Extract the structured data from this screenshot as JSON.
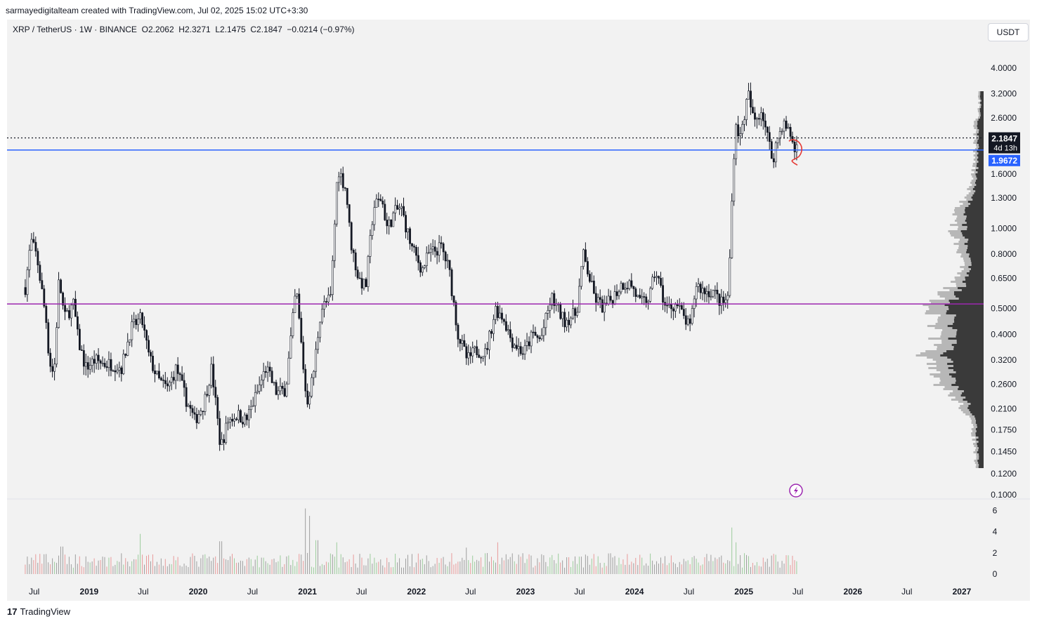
{
  "header": {
    "attribution": "sarmayedigitalteam created with TradingView.com, Jul 02, 2025 15:02 UTC+3:30",
    "ohlc": "XRP / TetherUS · 1W · BINANCE  O2.2062  H2.3271  L2.1475  C2.1847  −0.0214 (−0.97%)"
  },
  "currency_button": "USDT",
  "footer": {
    "logo_glyph": "17",
    "brand": "TradingView"
  },
  "chart_data": {
    "type": "candlestick",
    "symbol": "XRP / TetherUS",
    "interval": "1W",
    "exchange": "BINANCE",
    "last_ohlc": {
      "open": 2.2062,
      "high": 2.3271,
      "low": 2.1475,
      "close": 2.1847,
      "change": -0.0214,
      "change_pct": -0.97
    },
    "y_scale": "log",
    "y_range": [
      0.1,
      5.0
    ],
    "y_ticks": [
      "4.0000",
      "3.2000",
      "2.6000",
      "1.6000",
      "1.3000",
      "1.0000",
      "0.8000",
      "0.6500",
      "0.5000",
      "0.4000",
      "0.3200",
      "0.2600",
      "0.2100",
      "0.1750",
      "0.1450",
      "0.1200",
      "0.1000"
    ],
    "x_range": [
      "2018-04-01",
      "2027-03-15"
    ],
    "x_ticks": [
      {
        "label": "Jul",
        "date": "2018-07-01",
        "bold": false
      },
      {
        "label": "2019",
        "date": "2019-01-01",
        "bold": true
      },
      {
        "label": "Jul",
        "date": "2019-07-01",
        "bold": false
      },
      {
        "label": "2020",
        "date": "2020-01-01",
        "bold": true
      },
      {
        "label": "Jul",
        "date": "2020-07-01",
        "bold": false
      },
      {
        "label": "2021",
        "date": "2021-01-01",
        "bold": true
      },
      {
        "label": "Jul",
        "date": "2021-07-01",
        "bold": false
      },
      {
        "label": "2022",
        "date": "2022-01-01",
        "bold": true
      },
      {
        "label": "Jul",
        "date": "2022-07-01",
        "bold": false
      },
      {
        "label": "2023",
        "date": "2023-01-01",
        "bold": true
      },
      {
        "label": "Jul",
        "date": "2023-07-01",
        "bold": false
      },
      {
        "label": "2024",
        "date": "2024-01-01",
        "bold": true
      },
      {
        "label": "Jul",
        "date": "2024-07-01",
        "bold": false
      },
      {
        "label": "2025",
        "date": "2025-01-01",
        "bold": true
      },
      {
        "label": "Jul",
        "date": "2025-07-01",
        "bold": false
      },
      {
        "label": "2026",
        "date": "2026-01-01",
        "bold": true
      },
      {
        "label": "Jul",
        "date": "2026-07-01",
        "bold": false
      },
      {
        "label": "2027",
        "date": "2027-01-01",
        "bold": true
      }
    ],
    "price_path": [
      [
        "2018-06-01",
        0.6
      ],
      [
        "2018-06-20",
        0.9
      ],
      [
        "2018-07-10",
        0.78
      ],
      [
        "2018-08-10",
        0.45
      ],
      [
        "2018-08-20",
        0.32
      ],
      [
        "2018-09-05",
        0.28
      ],
      [
        "2018-09-22",
        0.65
      ],
      [
        "2018-10-10",
        0.46
      ],
      [
        "2018-11-10",
        0.52
      ],
      [
        "2018-11-25",
        0.38
      ],
      [
        "2018-12-20",
        0.3
      ],
      [
        "2019-01-20",
        0.32
      ],
      [
        "2019-02-20",
        0.31
      ],
      [
        "2019-03-20",
        0.31
      ],
      [
        "2019-04-20",
        0.3
      ],
      [
        "2019-05-20",
        0.42
      ],
      [
        "2019-06-25",
        0.46
      ],
      [
        "2019-07-20",
        0.33
      ],
      [
        "2019-08-20",
        0.27
      ],
      [
        "2019-09-20",
        0.25
      ],
      [
        "2019-10-20",
        0.3
      ],
      [
        "2019-11-20",
        0.23
      ],
      [
        "2019-12-20",
        0.19
      ],
      [
        "2020-01-20",
        0.22
      ],
      [
        "2020-02-15",
        0.3
      ],
      [
        "2020-03-16",
        0.15
      ],
      [
        "2020-04-10",
        0.19
      ],
      [
        "2020-05-10",
        0.2
      ],
      [
        "2020-06-10",
        0.19
      ],
      [
        "2020-07-15",
        0.24
      ],
      [
        "2020-08-15",
        0.3
      ],
      [
        "2020-09-20",
        0.24
      ],
      [
        "2020-10-20",
        0.25
      ],
      [
        "2020-11-24",
        0.6
      ],
      [
        "2020-12-29",
        0.22
      ],
      [
        "2021-01-20",
        0.28
      ],
      [
        "2021-02-15",
        0.5
      ],
      [
        "2021-03-20",
        0.55
      ],
      [
        "2021-04-12",
        1.7
      ],
      [
        "2021-05-10",
        1.4
      ],
      [
        "2021-05-25",
        0.9
      ],
      [
        "2021-06-20",
        0.65
      ],
      [
        "2021-07-15",
        0.6
      ],
      [
        "2021-08-10",
        1.2
      ],
      [
        "2021-09-06",
        1.3
      ],
      [
        "2021-09-25",
        1.0
      ],
      [
        "2021-10-20",
        1.15
      ],
      [
        "2021-11-10",
        1.2
      ],
      [
        "2021-12-15",
        0.85
      ],
      [
        "2022-01-20",
        0.7
      ],
      [
        "2022-02-10",
        0.8
      ],
      [
        "2022-03-25",
        0.85
      ],
      [
        "2022-04-20",
        0.7
      ],
      [
        "2022-05-20",
        0.4
      ],
      [
        "2022-06-20",
        0.32
      ],
      [
        "2022-07-20",
        0.35
      ],
      [
        "2022-08-20",
        0.34
      ],
      [
        "2022-09-23",
        0.5
      ],
      [
        "2022-10-20",
        0.46
      ],
      [
        "2022-11-15",
        0.38
      ],
      [
        "2022-12-25",
        0.34
      ],
      [
        "2023-01-25",
        0.4
      ],
      [
        "2023-02-20",
        0.38
      ],
      [
        "2023-03-29",
        0.55
      ],
      [
        "2023-05-10",
        0.45
      ],
      [
        "2023-06-20",
        0.48
      ],
      [
        "2023-07-13",
        0.8
      ],
      [
        "2023-08-20",
        0.55
      ],
      [
        "2023-09-20",
        0.5
      ],
      [
        "2023-10-20",
        0.55
      ],
      [
        "2023-11-20",
        0.62
      ],
      [
        "2023-12-20",
        0.62
      ],
      [
        "2024-01-20",
        0.52
      ],
      [
        "2024-02-20",
        0.55
      ],
      [
        "2024-03-11",
        0.7
      ],
      [
        "2024-04-15",
        0.5
      ],
      [
        "2024-05-20",
        0.52
      ],
      [
        "2024-07-05",
        0.42
      ],
      [
        "2024-07-25",
        0.62
      ],
      [
        "2024-08-20",
        0.58
      ],
      [
        "2024-09-20",
        0.58
      ],
      [
        "2024-10-20",
        0.52
      ],
      [
        "2024-11-10",
        0.55
      ],
      [
        "2024-11-20",
        1.1
      ],
      [
        "2024-12-03",
        2.5
      ],
      [
        "2024-12-20",
        2.2
      ],
      [
        "2025-01-16",
        3.2
      ],
      [
        "2025-02-03",
        2.5
      ],
      [
        "2025-03-02",
        2.8
      ],
      [
        "2025-04-07",
        1.8
      ],
      [
        "2025-04-20",
        2.1
      ],
      [
        "2025-05-12",
        2.5
      ],
      [
        "2025-06-10",
        2.2
      ],
      [
        "2025-06-22",
        1.9
      ],
      [
        "2025-07-01",
        2.18
      ]
    ],
    "key_levels": [
      {
        "price": 1.9672,
        "color": "#2962ff",
        "label": "1.9672"
      },
      {
        "price": 0.52,
        "color": "#9c27b0"
      }
    ],
    "last_price": {
      "price": 2.1847,
      "label": "2.1847",
      "countdown": "4d 13h"
    },
    "volume_axis": {
      "ticks": [
        "6",
        "4",
        "2",
        "0"
      ],
      "max": 6.5
    },
    "volume_spikes": [
      [
        "2018-10-01",
        2.6
      ],
      [
        "2019-06-20",
        3.8
      ],
      [
        "2020-03-16",
        3.1
      ],
      [
        "2020-12-25",
        6.2
      ],
      [
        "2021-01-10",
        5.5
      ],
      [
        "2021-02-02",
        3.2
      ],
      [
        "2021-04-10",
        3.0
      ],
      [
        "2022-06-15",
        2.5
      ],
      [
        "2022-10-01",
        3.0
      ],
      [
        "2024-11-20",
        4.4
      ],
      [
        "2024-12-05",
        3.0
      ]
    ],
    "annotations": [
      {
        "type": "hand-drawn-curve",
        "date": "2025-06-20",
        "price": 1.95,
        "color": "#e53935"
      },
      {
        "type": "lightning-icon",
        "date": "2025-06-20",
        "color": "#9c27b0"
      }
    ]
  }
}
